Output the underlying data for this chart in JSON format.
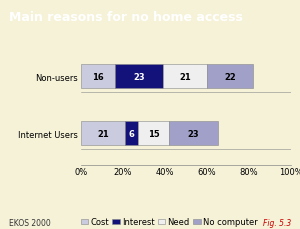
{
  "title": "Main reasons for no home access",
  "title_bg_color": "#7B0000",
  "title_text_color": "#FFFFFF",
  "background_color": "#F5F2D8",
  "categories": [
    "Internet Users",
    "Non-users"
  ],
  "series": {
    "Cost": [
      21,
      16
    ],
    "Interest": [
      6,
      23
    ],
    "Need": [
      15,
      21
    ],
    "No computer": [
      23,
      22
    ]
  },
  "colors": {
    "Cost": "#CBCBE0",
    "Interest": "#12127A",
    "Need": "#EFEFEF",
    "No computer": "#A0A0C8"
  },
  "text_colors": {
    "Cost": "#000000",
    "Interest": "#FFFFFF",
    "Need": "#000000",
    "No computer": "#000000"
  },
  "xlabel_ticks": [
    0,
    20,
    40,
    60,
    80,
    100
  ],
  "xlabel_labels": [
    "0%",
    "20%",
    "40%",
    "60%",
    "80%",
    "100%"
  ],
  "footer_left": "EKOS 2000",
  "footer_right": "Fig. 5.3",
  "legend_labels": [
    "Cost",
    "Interest",
    "Need",
    "No computer"
  ],
  "value_fontsize": 6,
  "legend_fontsize": 6,
  "axis_fontsize": 6,
  "footer_fontsize": 5.5,
  "title_fontsize": 9
}
